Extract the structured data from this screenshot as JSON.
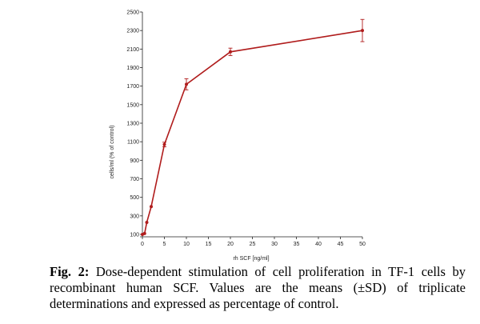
{
  "chart_data": {
    "type": "line",
    "title": "",
    "xlabel": "rh SCF [ng/ml]",
    "ylabel": "cells/ml (% of control)",
    "xlim": [
      0,
      50
    ],
    "ylim": [
      100,
      2500
    ],
    "x_ticks": [
      0,
      5,
      10,
      15,
      20,
      25,
      30,
      35,
      40,
      45,
      50
    ],
    "y_ticks": [
      100,
      300,
      500,
      700,
      900,
      1100,
      1300,
      1500,
      1700,
      1900,
      2100,
      2300,
      2500
    ],
    "grid": false,
    "series": [
      {
        "name": "TF-1 cells",
        "color": "#b01c1c",
        "x": [
          0,
          0.5,
          1,
          2,
          5,
          10,
          20,
          50
        ],
        "y": [
          100,
          110,
          230,
          400,
          1070,
          1720,
          2070,
          2300
        ],
        "sd": [
          0,
          0,
          0,
          0,
          25,
          60,
          40,
          120
        ]
      }
    ]
  },
  "caption": {
    "label": "Fig. 2:",
    "text": " Dose-dependent stimulation of cell proliferation in TF-1 cells by recombinant human SCF. Values are the means (±SD) of triplicate determinations and expressed as percentage of control."
  }
}
